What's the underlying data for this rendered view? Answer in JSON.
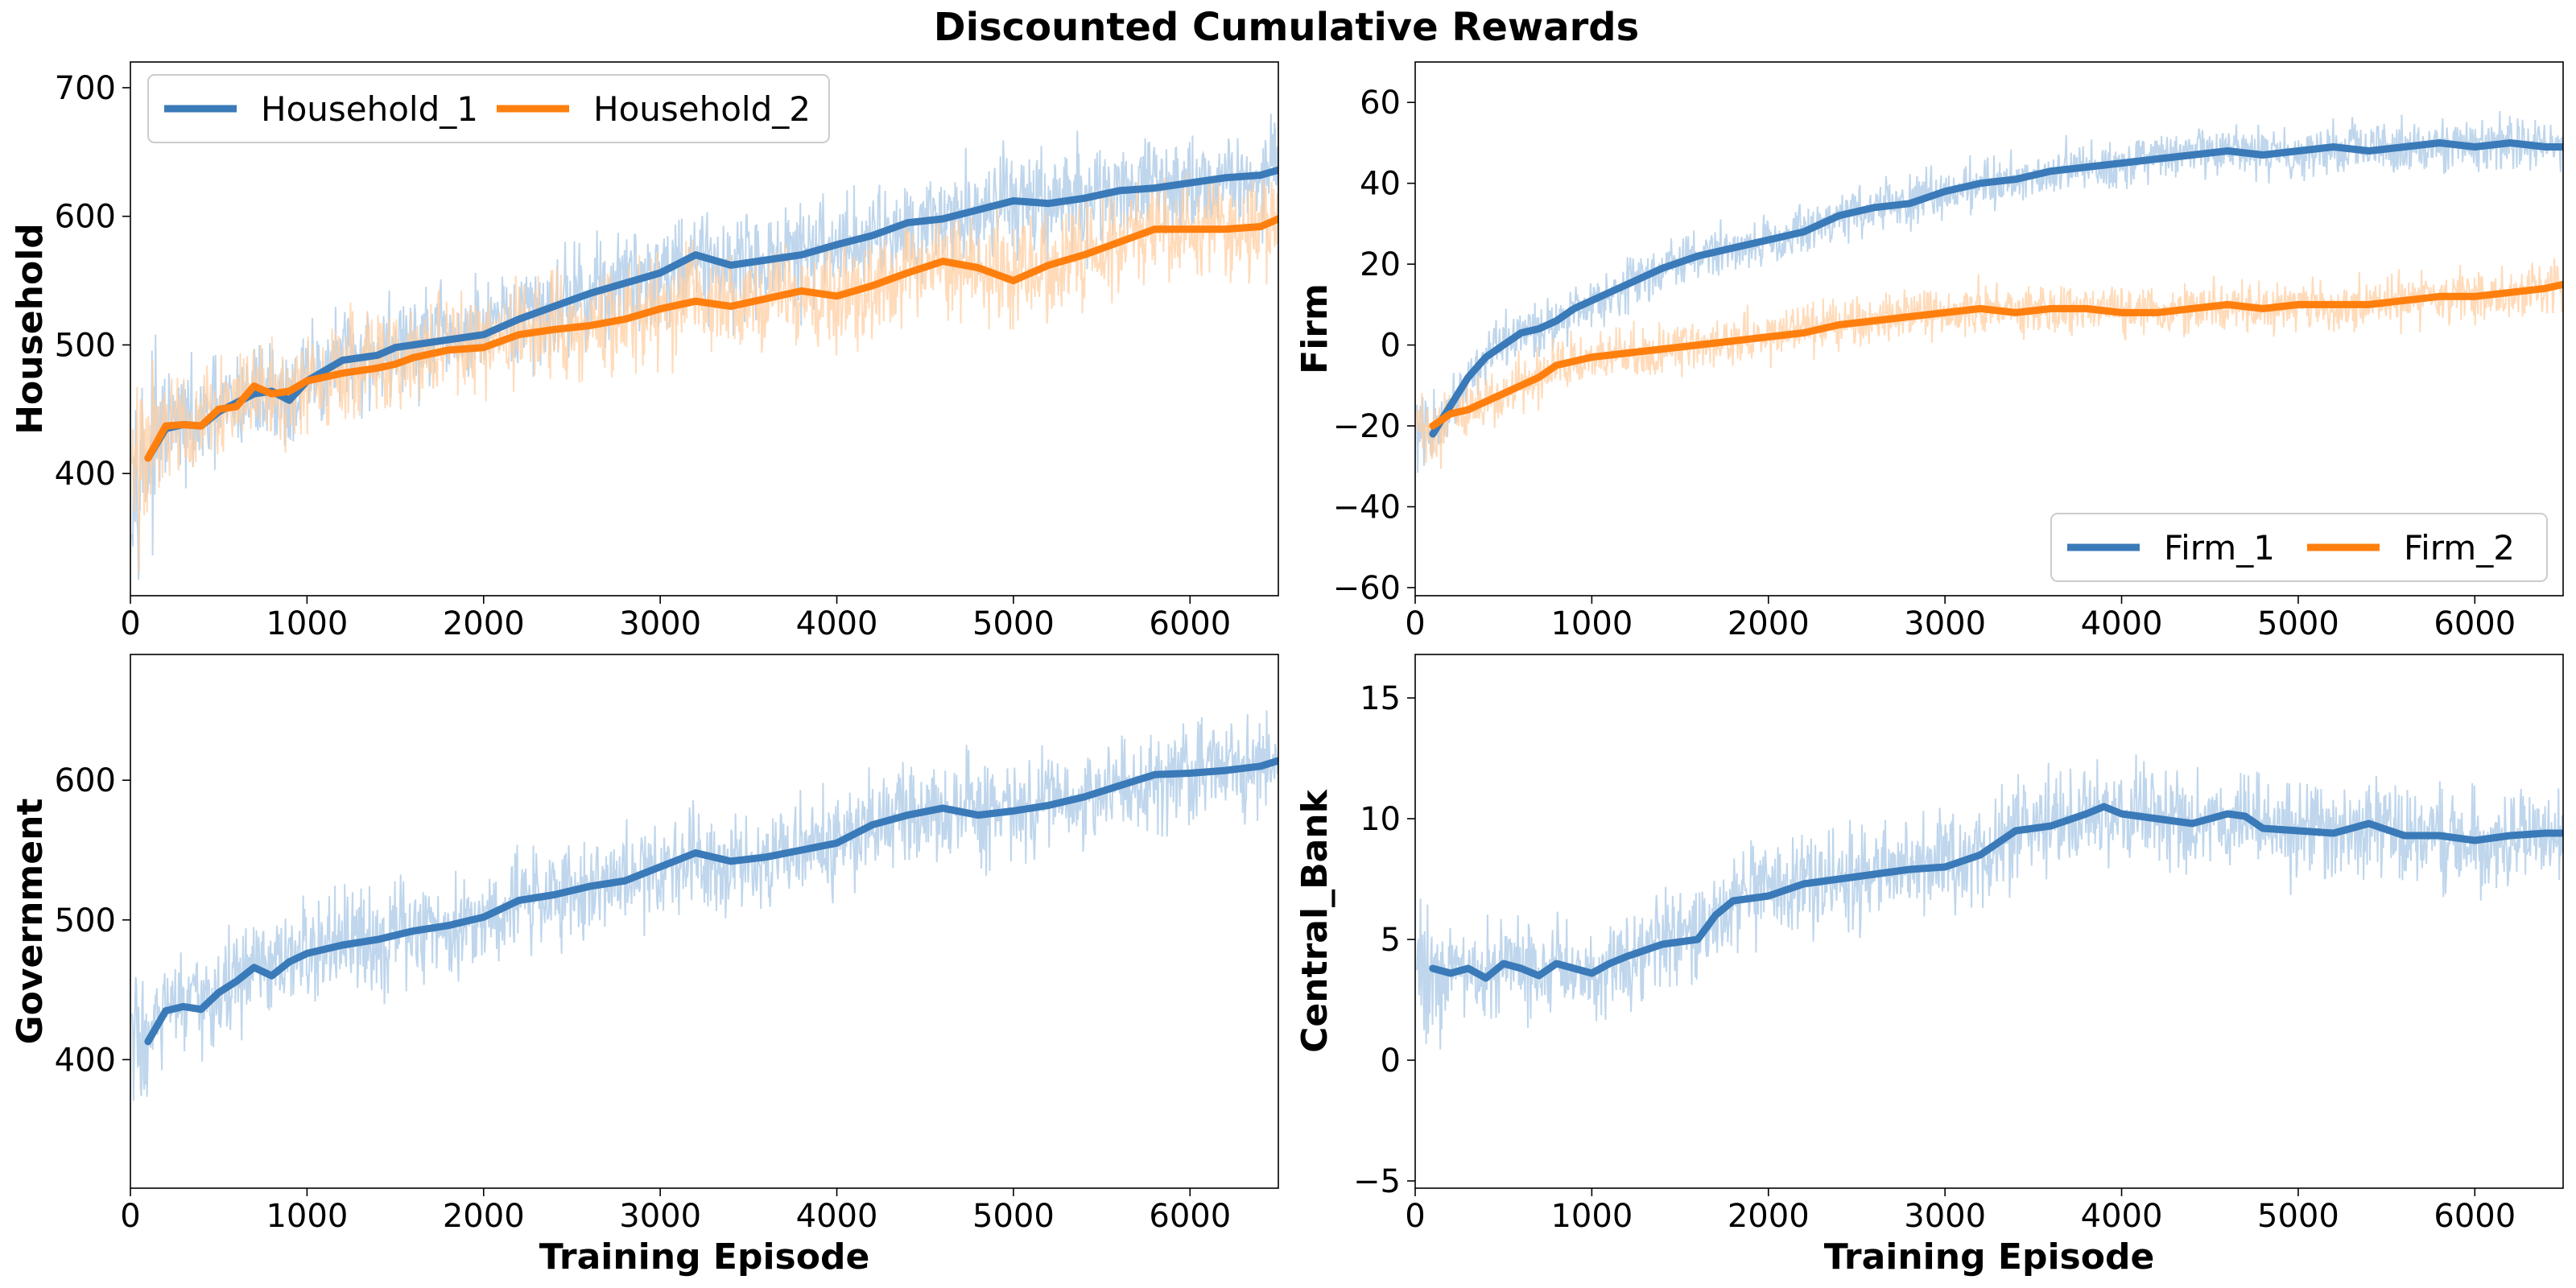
{
  "title": "Discounted Cumulative Rewards",
  "colors": {
    "blue": "#3a7ab8",
    "orange": "#ff7f0e",
    "blue_raw": "#a9c8e6",
    "orange_raw": "#ffcfa3"
  },
  "chart_data": [
    {
      "type": "line",
      "ylabel": "Household",
      "xlabel": "",
      "xlim": [
        0,
        6500
      ],
      "ylim": [
        305,
        720
      ],
      "xticks": [
        "0",
        "1000",
        "2000",
        "3000",
        "4000",
        "5000",
        "6000"
      ],
      "yticks": [
        "400",
        "500",
        "600",
        "700"
      ],
      "legend": {
        "placement": "top-left",
        "entries": [
          "Household_1",
          "Household_2"
        ]
      },
      "raw_noise": 45,
      "series": [
        {
          "name": "Household_1",
          "color": "blue",
          "x": [
            100,
            200,
            300,
            400,
            500,
            600,
            700,
            800,
            900,
            1000,
            1200,
            1400,
            1500,
            1600,
            1800,
            2000,
            2200,
            2400,
            2600,
            2800,
            3000,
            3200,
            3400,
            3600,
            3800,
            4000,
            4200,
            4400,
            4600,
            4800,
            5000,
            5200,
            5400,
            5600,
            5800,
            6000,
            6200,
            6400,
            6500
          ],
          "y": [
            412,
            435,
            438,
            437,
            448,
            455,
            462,
            464,
            457,
            472,
            488,
            492,
            498,
            500,
            504,
            508,
            520,
            530,
            540,
            548,
            556,
            570,
            562,
            566,
            570,
            578,
            585,
            595,
            598,
            605,
            612,
            610,
            614,
            620,
            622,
            626,
            630,
            632,
            636
          ]
        },
        {
          "name": "Household_2",
          "color": "orange",
          "x": [
            100,
            200,
            300,
            400,
            500,
            600,
            700,
            800,
            900,
            1000,
            1200,
            1400,
            1500,
            1600,
            1800,
            2000,
            2200,
            2400,
            2600,
            2800,
            3000,
            3200,
            3400,
            3600,
            3800,
            4000,
            4200,
            4400,
            4600,
            4800,
            5000,
            5200,
            5400,
            5600,
            5800,
            6000,
            6200,
            6400,
            6500
          ],
          "y": [
            412,
            437,
            438,
            437,
            450,
            452,
            468,
            462,
            464,
            472,
            478,
            482,
            485,
            490,
            496,
            498,
            508,
            512,
            515,
            520,
            528,
            534,
            530,
            536,
            542,
            538,
            546,
            556,
            565,
            560,
            550,
            562,
            570,
            580,
            590,
            590,
            590,
            592,
            598
          ]
        }
      ]
    },
    {
      "type": "line",
      "ylabel": "Firm",
      "xlabel": "",
      "xlim": [
        0,
        6500
      ],
      "ylim": [
        -62,
        70
      ],
      "xticks": [
        "0",
        "1000",
        "2000",
        "3000",
        "4000",
        "5000",
        "6000"
      ],
      "yticks": [
        "−60",
        "−40",
        "−20",
        "0",
        "20",
        "40",
        "60"
      ],
      "legend": {
        "placement": "bottom-right",
        "entries": [
          "Firm_1",
          "Firm_2"
        ]
      },
      "raw_noise": 7,
      "series": [
        {
          "name": "Firm_1",
          "color": "blue",
          "x": [
            100,
            200,
            300,
            400,
            500,
            600,
            700,
            800,
            900,
            1000,
            1200,
            1400,
            1600,
            1800,
            2000,
            2200,
            2400,
            2600,
            2800,
            3000,
            3200,
            3400,
            3600,
            3800,
            4000,
            4200,
            4400,
            4600,
            4800,
            5000,
            5200,
            5400,
            5600,
            5800,
            6000,
            6200,
            6400,
            6500
          ],
          "y": [
            -22,
            -15,
            -8,
            -3,
            0,
            3,
            4,
            6,
            9,
            11,
            15,
            19,
            22,
            24,
            26,
            28,
            32,
            34,
            35,
            38,
            40,
            41,
            43,
            44,
            45,
            46,
            47,
            48,
            47,
            48,
            49,
            48,
            49,
            50,
            49,
            50,
            49,
            49
          ]
        },
        {
          "name": "Firm_2",
          "color": "orange",
          "x": [
            100,
            200,
            300,
            400,
            500,
            600,
            700,
            800,
            900,
            1000,
            1200,
            1400,
            1600,
            1800,
            2000,
            2200,
            2400,
            2600,
            2800,
            3000,
            3200,
            3400,
            3600,
            3800,
            4000,
            4200,
            4400,
            4600,
            4800,
            5000,
            5200,
            5400,
            5600,
            5800,
            6000,
            6200,
            6400,
            6500
          ],
          "y": [
            -20,
            -17,
            -16,
            -14,
            -12,
            -10,
            -8,
            -5,
            -4,
            -3,
            -2,
            -1,
            0,
            1,
            2,
            3,
            5,
            6,
            7,
            8,
            9,
            8,
            9,
            9,
            8,
            8,
            9,
            10,
            9,
            10,
            10,
            10,
            11,
            12,
            12,
            13,
            14,
            15
          ]
        }
      ]
    },
    {
      "type": "line",
      "ylabel": "Government",
      "xlabel": "Training Episode",
      "xlim": [
        0,
        6500
      ],
      "ylim": [
        308,
        690
      ],
      "xticks": [
        "0",
        "1000",
        "2000",
        "3000",
        "4000",
        "5000",
        "6000"
      ],
      "yticks": [
        "400",
        "500",
        "600"
      ],
      "legend": null,
      "raw_noise": 40,
      "series": [
        {
          "name": "Government",
          "color": "blue",
          "x": [
            100,
            200,
            300,
            400,
            500,
            600,
            700,
            800,
            900,
            1000,
            1200,
            1400,
            1600,
            1800,
            2000,
            2200,
            2400,
            2600,
            2800,
            3000,
            3200,
            3400,
            3600,
            3800,
            4000,
            4200,
            4400,
            4600,
            4800,
            5000,
            5200,
            5400,
            5600,
            5800,
            6000,
            6200,
            6400,
            6500
          ],
          "y": [
            413,
            435,
            438,
            436,
            448,
            456,
            466,
            460,
            470,
            476,
            482,
            486,
            492,
            496,
            502,
            514,
            518,
            524,
            528,
            538,
            548,
            542,
            545,
            550,
            555,
            568,
            575,
            580,
            575,
            578,
            582,
            588,
            596,
            604,
            605,
            607,
            610,
            614
          ]
        }
      ]
    },
    {
      "type": "line",
      "ylabel": "Central_Bank",
      "xlabel": "Training Episode",
      "xlim": [
        0,
        6500
      ],
      "ylim": [
        -5.3,
        16.8
      ],
      "xticks": [
        "0",
        "1000",
        "2000",
        "3000",
        "4000",
        "5000",
        "6000"
      ],
      "yticks": [
        "−5",
        "0",
        "5",
        "10",
        "15"
      ],
      "legend": null,
      "raw_noise": 2.2,
      "series": [
        {
          "name": "Central_Bank",
          "color": "blue",
          "x": [
            100,
            200,
            300,
            400,
            500,
            600,
            700,
            800,
            900,
            1000,
            1100,
            1200,
            1400,
            1600,
            1700,
            1800,
            2000,
            2200,
            2400,
            2600,
            2800,
            3000,
            3200,
            3400,
            3600,
            3800,
            3900,
            4000,
            4200,
            4400,
            4600,
            4700,
            4800,
            5000,
            5200,
            5400,
            5600,
            5800,
            6000,
            6200,
            6400,
            6500
          ],
          "y": [
            3.8,
            3.6,
            3.8,
            3.4,
            4.0,
            3.8,
            3.5,
            4.0,
            3.8,
            3.6,
            4.0,
            4.3,
            4.8,
            5.0,
            6.0,
            6.6,
            6.8,
            7.3,
            7.5,
            7.7,
            7.9,
            8.0,
            8.5,
            9.5,
            9.7,
            10.2,
            10.5,
            10.2,
            10.0,
            9.8,
            10.2,
            10.1,
            9.6,
            9.5,
            9.4,
            9.8,
            9.3,
            9.3,
            9.1,
            9.3,
            9.4,
            9.4
          ]
        }
      ]
    }
  ]
}
